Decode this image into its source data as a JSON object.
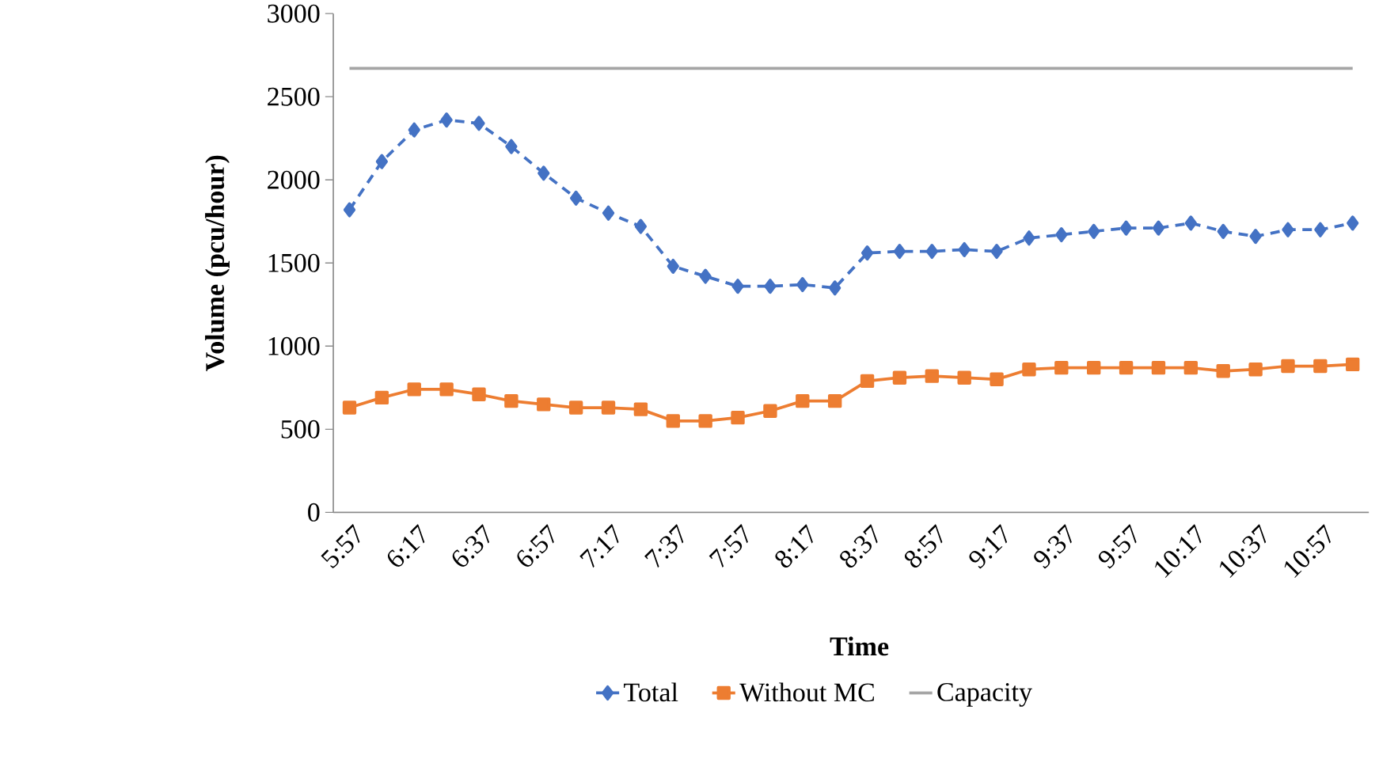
{
  "chart_data": {
    "type": "line",
    "xlabel": "Time",
    "ylabel": "Volume (pcu/hour)",
    "categories": [
      "5:57",
      null,
      "6:17",
      null,
      "6:37",
      null,
      "6:57",
      null,
      "7:17",
      null,
      "7:37",
      null,
      "7:57",
      null,
      "8:17",
      null,
      "8:37",
      null,
      "8:57",
      null,
      "9:17",
      null,
      "9:37",
      null,
      "9:57",
      null,
      "10:17",
      null,
      "10:37",
      null,
      "10:57",
      null
    ],
    "series": [
      {
        "name": "Total",
        "color": "#4472c4",
        "marker": "diamond",
        "line_style": "dashed",
        "values": [
          1820,
          2110,
          2300,
          2360,
          2340,
          2200,
          2040,
          1890,
          1800,
          1720,
          1480,
          1420,
          1360,
          1360,
          1370,
          1350,
          1560,
          1570,
          1570,
          1580,
          1570,
          1650,
          1670,
          1690,
          1710,
          1710,
          1740,
          1690,
          1660,
          1700,
          1700,
          1740
        ]
      },
      {
        "name": "Without MC",
        "color": "#ed7d31",
        "marker": "square",
        "line_style": "solid",
        "values": [
          630,
          690,
          740,
          740,
          710,
          670,
          650,
          630,
          630,
          620,
          550,
          550,
          570,
          610,
          670,
          670,
          790,
          810,
          820,
          810,
          800,
          860,
          870,
          870,
          870,
          870,
          870,
          850,
          860,
          880,
          880,
          890
        ]
      },
      {
        "name": "Capacity",
        "color": "#a5a5a5",
        "marker": "none",
        "line_style": "solid",
        "values": [
          2670,
          2670,
          2670,
          2670,
          2670,
          2670,
          2670,
          2670,
          2670,
          2670,
          2670,
          2670,
          2670,
          2670,
          2670,
          2670,
          2670,
          2670,
          2670,
          2670,
          2670,
          2670,
          2670,
          2670,
          2670,
          2670,
          2670,
          2670,
          2670,
          2670,
          2670,
          2670
        ]
      }
    ],
    "ylim": [
      0,
      3000
    ],
    "yticks": [
      0,
      500,
      1000,
      1500,
      2000,
      2500,
      3000
    ],
    "grid": false,
    "legend": "bottom"
  }
}
